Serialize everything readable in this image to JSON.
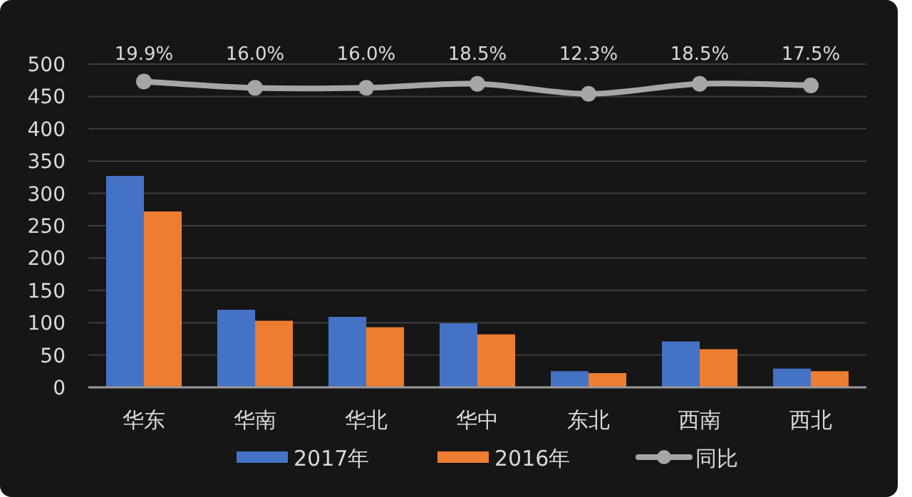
{
  "chart_data": {
    "type": "bar",
    "categories": [
      "华东",
      "华南",
      "华北",
      "华中",
      "东北",
      "西南",
      "西北"
    ],
    "series": [
      {
        "name": "2017年",
        "color": "#4472c4",
        "values": [
          327,
          120,
          109,
          99,
          25,
          71,
          29
        ]
      },
      {
        "name": "2016年",
        "color": "#ed7d31",
        "values": [
          272,
          103,
          93,
          82,
          22,
          59,
          25
        ]
      },
      {
        "name": "同比",
        "type": "line",
        "axis": "y2",
        "color": "#a6a6a6",
        "marker": "circle",
        "values": [
          19.9,
          16.0,
          16.0,
          18.5,
          12.3,
          18.5,
          17.5
        ],
        "value_labels": [
          "19.9%",
          "16.0%",
          "16.0%",
          "18.5%",
          "12.3%",
          "18.5%",
          "17.5%"
        ]
      }
    ],
    "ylim": [
      0,
      500
    ],
    "yticks": [
      0,
      50,
      100,
      150,
      200,
      250,
      300,
      350,
      400,
      450,
      500
    ],
    "y2lim": [
      -169.3,
      30.7
    ],
    "grid": "y",
    "legend": "bottom"
  }
}
